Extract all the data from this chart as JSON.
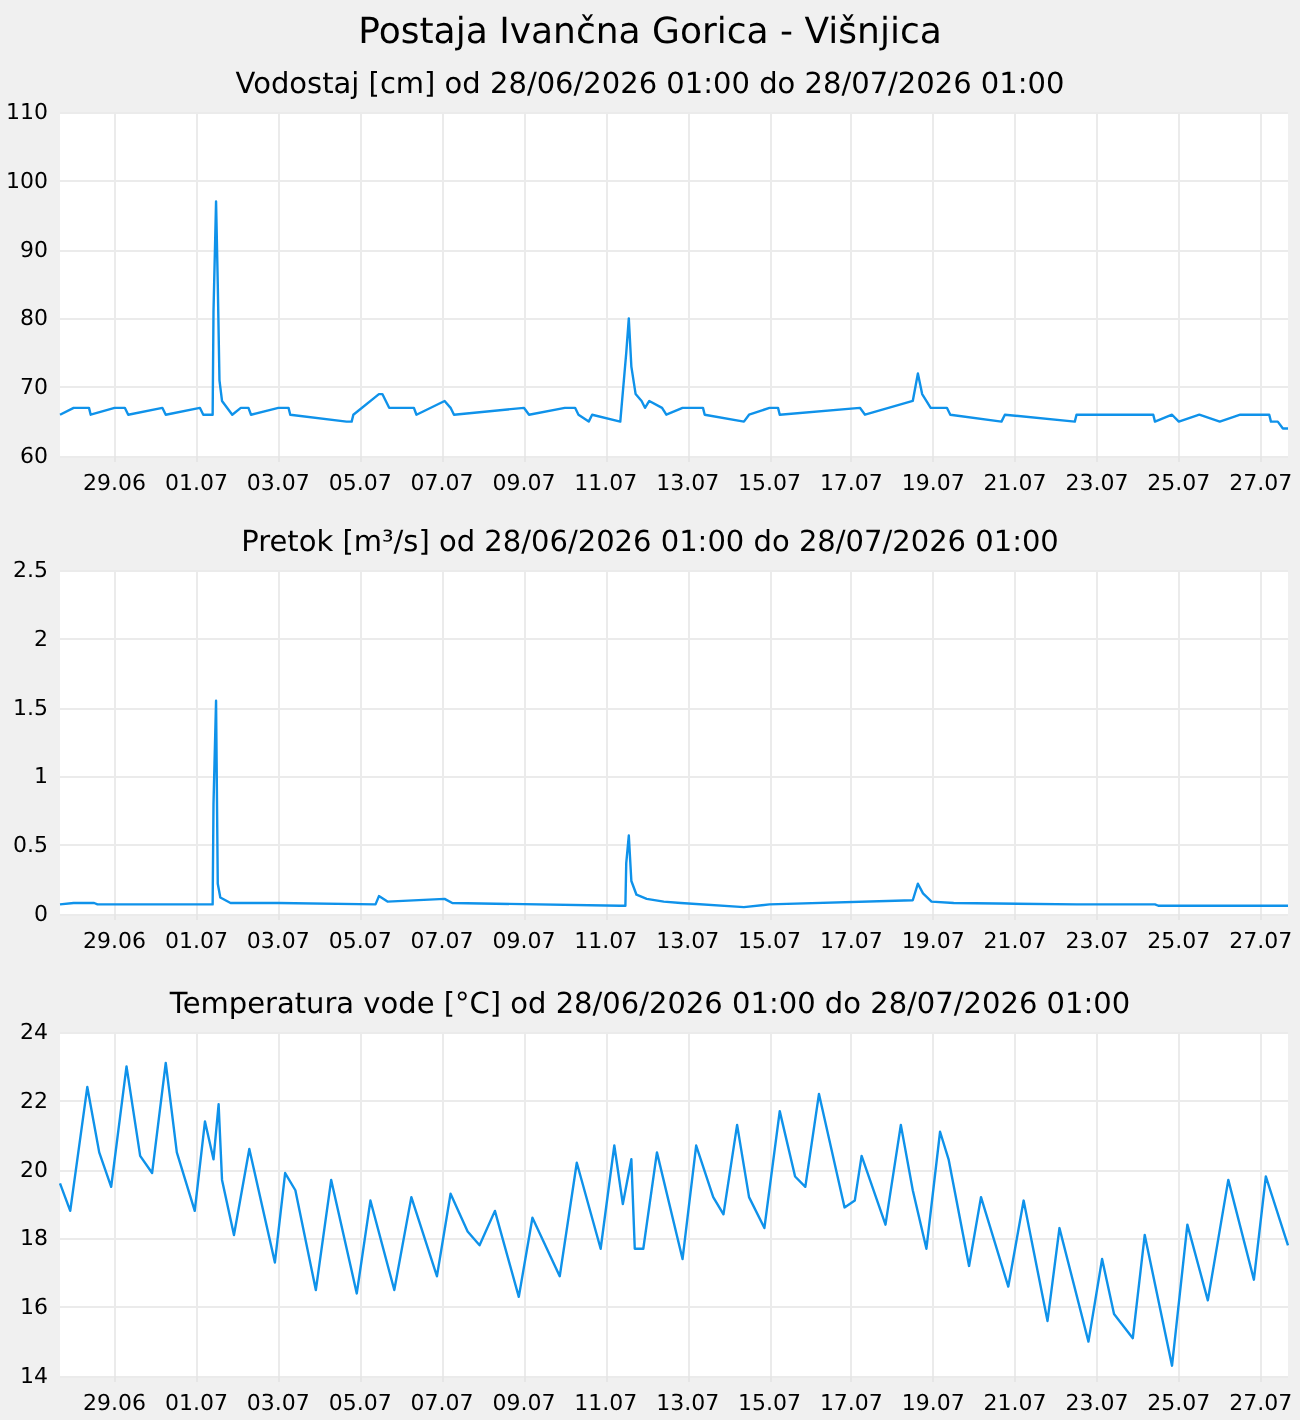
{
  "chart_data": [
    {
      "type": "line",
      "title": "Postaja Ivančna Gorica - Višnjica",
      "subtitle": "Vodostaj [cm] od 28/06/2026 01:00 do 28/07/2026 01:00",
      "color": "#0f92ea",
      "grid": true,
      "xlim": [
        "2026-06-27T16:00",
        "2026-07-27T16:00"
      ],
      "xticks": [
        {
          "value": "2026-06-29",
          "label": "29.06"
        },
        {
          "value": "2026-07-01",
          "label": "01.07"
        },
        {
          "value": "2026-07-03",
          "label": "03.07"
        },
        {
          "value": "2026-07-05",
          "label": "05.07"
        },
        {
          "value": "2026-07-07",
          "label": "07.07"
        },
        {
          "value": "2026-07-09",
          "label": "09.07"
        },
        {
          "value": "2026-07-11",
          "label": "11.07"
        },
        {
          "value": "2026-07-13",
          "label": "13.07"
        },
        {
          "value": "2026-07-15",
          "label": "15.07"
        },
        {
          "value": "2026-07-17",
          "label": "17.07"
        },
        {
          "value": "2026-07-19",
          "label": "19.07"
        },
        {
          "value": "2026-07-21",
          "label": "21.07"
        },
        {
          "value": "2026-07-23",
          "label": "23.07"
        },
        {
          "value": "2026-07-25",
          "label": "25.07"
        },
        {
          "value": "2026-07-27",
          "label": "27.07"
        }
      ],
      "ylim": [
        60,
        110
      ],
      "yticks": [
        60,
        70,
        80,
        90,
        100,
        110
      ],
      "x": [
        "2026-06-27T16:00",
        "2026-06-28T00:00",
        "2026-06-28T09:00",
        "2026-06-28T10:00",
        "2026-06-29T00:00",
        "2026-06-29T06:00",
        "2026-06-29T08:00",
        "2026-06-30T04:00",
        "2026-06-30T06:00",
        "2026-07-01T02:00",
        "2026-07-01T04:00",
        "2026-07-01T09:30",
        "2026-07-01T10:00",
        "2026-07-01T11:30",
        "2026-07-01T12:30",
        "2026-07-01T13:30",
        "2026-07-01T15:00",
        "2026-07-01T21:00",
        "2026-07-02T02:00",
        "2026-07-02T06:30",
        "2026-07-02T08:00",
        "2026-07-03T00:00",
        "2026-07-03T06:00",
        "2026-07-03T07:00",
        "2026-07-04T16:00",
        "2026-07-04T19:00",
        "2026-07-04T20:00",
        "2026-07-05T11:00",
        "2026-07-05T13:00",
        "2026-07-05T17:00",
        "2026-07-06T07:30",
        "2026-07-06T09:00",
        "2026-07-07T01:30",
        "2026-07-07T05:00",
        "2026-07-07T07:00",
        "2026-07-09T00:00",
        "2026-07-09T03:00",
        "2026-07-10T00:00",
        "2026-07-10T06:00",
        "2026-07-10T08:00",
        "2026-07-10T14:00",
        "2026-07-10T16:00",
        "2026-07-11T08:30",
        "2026-07-11T12:00",
        "2026-07-11T13:30",
        "2026-07-11T15:00",
        "2026-07-11T17:30",
        "2026-07-11T21:00",
        "2026-07-11T23:00",
        "2026-07-12T01:30",
        "2026-07-12T09:00",
        "2026-07-12T11:30",
        "2026-07-12T21:00",
        "2026-07-13T09:00",
        "2026-07-13T10:00",
        "2026-07-14T09:00",
        "2026-07-14T12:00",
        "2026-07-15T00:00",
        "2026-07-15T05:00",
        "2026-07-15T06:00",
        "2026-07-17T05:00",
        "2026-07-17T08:00",
        "2026-07-18T12:00",
        "2026-07-18T15:00",
        "2026-07-18T17:30",
        "2026-07-18T22:30",
        "2026-07-19T08:00",
        "2026-07-19T10:00",
        "2026-07-20T16:00",
        "2026-07-20T18:00",
        "2026-07-22T11:00",
        "2026-07-22T12:00",
        "2026-07-24T09:00",
        "2026-07-24T10:00",
        "2026-07-24T20:00",
        "2026-07-25T00:00",
        "2026-07-25T12:00",
        "2026-07-26T00:00",
        "2026-07-26T12:00",
        "2026-07-27T05:00",
        "2026-07-27T06:00",
        "2026-07-27T10:00",
        "2026-07-27T13:00",
        "2026-07-27T16:00"
      ],
      "values": [
        66,
        67,
        67,
        66,
        67,
        67,
        66,
        67,
        66,
        67,
        66,
        66,
        81,
        97,
        85,
        71,
        68,
        66,
        67,
        67,
        66,
        67,
        67,
        66,
        65,
        65,
        66,
        69,
        69,
        67,
        67,
        66,
        68,
        67,
        66,
        67,
        66,
        67,
        67,
        66,
        65,
        66,
        65,
        75,
        80,
        73,
        69,
        68,
        67,
        68,
        67,
        66,
        67,
        67,
        66,
        65,
        66,
        67,
        67,
        66,
        67,
        66,
        68,
        72,
        69,
        67,
        67,
        66,
        65,
        66,
        65,
        66,
        66,
        65,
        66,
        65,
        66,
        65,
        66,
        66,
        65,
        65,
        64,
        64
      ]
    },
    {
      "type": "line",
      "title": "Pretok [m³/s] od 28/06/2026 01:00 do 28/07/2026 01:00",
      "color": "#0f92ea",
      "grid": true,
      "xlim": [
        "2026-06-27T16:00",
        "2026-07-27T16:00"
      ],
      "xticks": [
        {
          "value": "2026-06-29",
          "label": "29.06"
        },
        {
          "value": "2026-07-01",
          "label": "01.07"
        },
        {
          "value": "2026-07-03",
          "label": "03.07"
        },
        {
          "value": "2026-07-05",
          "label": "05.07"
        },
        {
          "value": "2026-07-07",
          "label": "07.07"
        },
        {
          "value": "2026-07-09",
          "label": "09.07"
        },
        {
          "value": "2026-07-11",
          "label": "11.07"
        },
        {
          "value": "2026-07-13",
          "label": "13.07"
        },
        {
          "value": "2026-07-15",
          "label": "15.07"
        },
        {
          "value": "2026-07-17",
          "label": "17.07"
        },
        {
          "value": "2026-07-19",
          "label": "19.07"
        },
        {
          "value": "2026-07-21",
          "label": "21.07"
        },
        {
          "value": "2026-07-23",
          "label": "23.07"
        },
        {
          "value": "2026-07-25",
          "label": "25.07"
        },
        {
          "value": "2026-07-27",
          "label": "27.07"
        }
      ],
      "ylim": [
        0,
        2.5
      ],
      "yticks": [
        0,
        0.5,
        1,
        1.5,
        2,
        2.5
      ],
      "x": [
        "2026-06-27T16:00",
        "2026-06-28T00:00",
        "2026-06-28T12:00",
        "2026-06-28T14:00",
        "2026-06-30T12:00",
        "2026-07-01T09:30",
        "2026-07-01T10:00",
        "2026-07-01T11:30",
        "2026-07-01T12:30",
        "2026-07-01T14:00",
        "2026-07-01T20:00",
        "2026-07-03T00:00",
        "2026-07-05T09:00",
        "2026-07-05T11:00",
        "2026-07-05T16:00",
        "2026-07-07T01:30",
        "2026-07-07T06:00",
        "2026-07-11T08:30",
        "2026-07-11T11:30",
        "2026-07-11T12:00",
        "2026-07-11T13:30",
        "2026-07-11T15:00",
        "2026-07-11T18:00",
        "2026-07-12T00:00",
        "2026-07-12T10:00",
        "2026-07-12T20:00",
        "2026-07-14T09:00",
        "2026-07-15T00:00",
        "2026-07-18T12:00",
        "2026-07-18T15:00",
        "2026-07-18T18:00",
        "2026-07-18T23:00",
        "2026-07-19T12:00",
        "2026-07-22T12:00",
        "2026-07-24T10:00",
        "2026-07-24T12:00",
        "2026-07-27T12:00",
        "2026-07-27T16:00"
      ],
      "values": [
        0.07,
        0.08,
        0.08,
        0.07,
        0.07,
        0.07,
        0.8,
        1.55,
        0.22,
        0.12,
        0.08,
        0.08,
        0.07,
        0.13,
        0.09,
        0.11,
        0.08,
        0.06,
        0.06,
        0.37,
        0.57,
        0.24,
        0.14,
        0.11,
        0.09,
        0.08,
        0.05,
        0.07,
        0.1,
        0.22,
        0.15,
        0.09,
        0.08,
        0.07,
        0.07,
        0.06,
        0.06,
        0.06
      ]
    },
    {
      "type": "line",
      "title": "Temperatura vode [°C] od 28/06/2026 01:00 do 28/07/2026 01:00",
      "color": "#0f92ea",
      "grid": true,
      "xlim": [
        "2026-06-27T16:00",
        "2026-07-27T16:00"
      ],
      "xticks": [
        {
          "value": "2026-06-29",
          "label": "29.06"
        },
        {
          "value": "2026-07-01",
          "label": "01.07"
        },
        {
          "value": "2026-07-03",
          "label": "03.07"
        },
        {
          "value": "2026-07-05",
          "label": "05.07"
        },
        {
          "value": "2026-07-07",
          "label": "07.07"
        },
        {
          "value": "2026-07-09",
          "label": "09.07"
        },
        {
          "value": "2026-07-11",
          "label": "11.07"
        },
        {
          "value": "2026-07-13",
          "label": "13.07"
        },
        {
          "value": "2026-07-15",
          "label": "15.07"
        },
        {
          "value": "2026-07-17",
          "label": "17.07"
        },
        {
          "value": "2026-07-19",
          "label": "19.07"
        },
        {
          "value": "2026-07-21",
          "label": "21.07"
        },
        {
          "value": "2026-07-23",
          "label": "23.07"
        },
        {
          "value": "2026-07-25",
          "label": "25.07"
        },
        {
          "value": "2026-07-27",
          "label": "27.07"
        }
      ],
      "ylim": [
        14,
        24
      ],
      "yticks": [
        14,
        16,
        18,
        20,
        22,
        24
      ],
      "x": [
        "2026-06-27T16:00",
        "2026-06-27T22:00",
        "2026-06-28T08:00",
        "2026-06-28T15:00",
        "2026-06-28T22:00",
        "2026-06-29T07:00",
        "2026-06-29T15:00",
        "2026-06-29T22:00",
        "2026-06-30T06:00",
        "2026-06-30T12:30",
        "2026-06-30T23:00",
        "2026-07-01T05:00",
        "2026-07-01T10:00",
        "2026-07-01T13:00",
        "2026-07-01T15:00",
        "2026-07-01T22:00",
        "2026-07-02T07:00",
        "2026-07-02T22:00",
        "2026-07-03T04:00",
        "2026-07-03T10:00",
        "2026-07-03T22:00",
        "2026-07-04T07:00",
        "2026-07-04T22:00",
        "2026-07-05T06:00",
        "2026-07-05T20:00",
        "2026-07-06T06:00",
        "2026-07-06T21:00",
        "2026-07-07T05:00",
        "2026-07-07T15:00",
        "2026-07-07T22:00",
        "2026-07-08T07:00",
        "2026-07-08T21:00",
        "2026-07-09T05:00",
        "2026-07-09T21:00",
        "2026-07-10T07:00",
        "2026-07-10T21:00",
        "2026-07-11T05:00",
        "2026-07-11T10:00",
        "2026-07-11T15:00",
        "2026-07-11T17:00",
        "2026-07-11T22:00",
        "2026-07-12T06:00",
        "2026-07-12T21:00",
        "2026-07-13T05:00",
        "2026-07-13T15:00",
        "2026-07-13T21:00",
        "2026-07-14T05:00",
        "2026-07-14T12:00",
        "2026-07-14T21:00",
        "2026-07-15T06:00",
        "2026-07-15T15:00",
        "2026-07-15T21:00",
        "2026-07-16T05:00",
        "2026-07-16T20:00",
        "2026-07-17T02:00",
        "2026-07-17T06:00",
        "2026-07-17T20:00",
        "2026-07-18T05:00",
        "2026-07-18T12:00",
        "2026-07-18T20:00",
        "2026-07-19T04:00",
        "2026-07-19T09:00",
        "2026-07-19T21:00",
        "2026-07-20T04:00",
        "2026-07-20T20:00",
        "2026-07-21T05:00",
        "2026-07-21T19:00",
        "2026-07-22T02:00",
        "2026-07-22T19:00",
        "2026-07-23T03:00",
        "2026-07-23T10:00",
        "2026-07-23T21:00",
        "2026-07-24T04:00",
        "2026-07-24T20:00",
        "2026-07-25T05:00",
        "2026-07-25T17:00",
        "2026-07-26T05:00",
        "2026-07-26T20:00",
        "2026-07-27T03:00",
        "2026-07-27T16:00"
      ],
      "values": [
        19.6,
        18.8,
        22.4,
        20.5,
        19.5,
        23.0,
        20.4,
        19.9,
        23.1,
        20.5,
        18.8,
        21.4,
        20.3,
        21.9,
        19.7,
        18.1,
        20.6,
        17.3,
        19.9,
        19.4,
        16.5,
        19.7,
        16.4,
        19.1,
        16.5,
        19.2,
        16.9,
        19.3,
        18.2,
        17.8,
        18.8,
        16.3,
        18.6,
        16.9,
        20.2,
        17.7,
        20.7,
        19.0,
        20.3,
        17.7,
        17.7,
        20.5,
        17.4,
        20.7,
        19.2,
        18.7,
        21.3,
        19.2,
        18.3,
        21.7,
        19.8,
        19.5,
        22.2,
        18.9,
        19.1,
        20.4,
        18.4,
        21.3,
        19.4,
        17.7,
        21.1,
        20.3,
        17.2,
        19.2,
        16.6,
        19.1,
        15.6,
        18.3,
        15.0,
        17.4,
        15.8,
        15.1,
        18.1,
        14.3,
        18.4,
        16.2,
        19.7,
        16.8,
        19.8,
        17.8
      ]
    }
  ]
}
